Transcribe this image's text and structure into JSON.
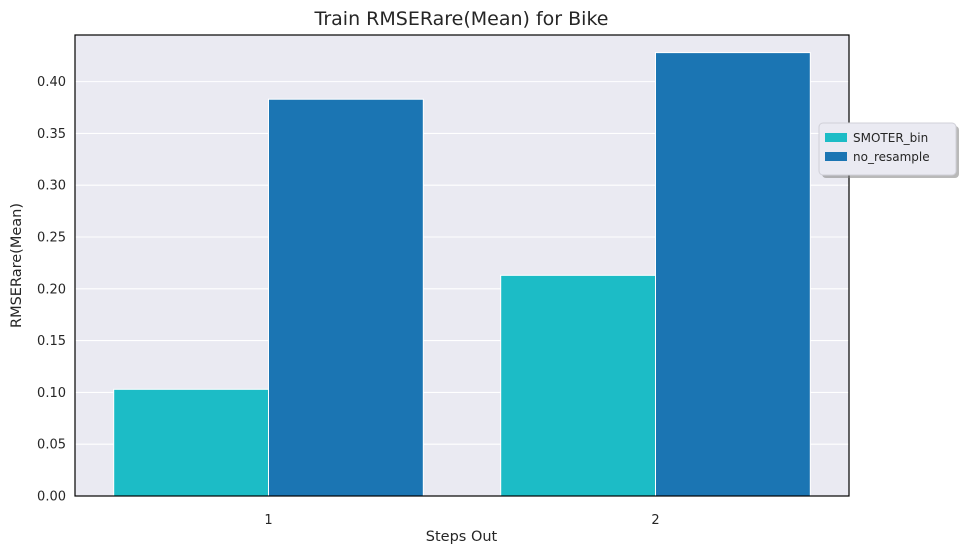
{
  "chart_data": {
    "type": "bar",
    "title": "Train RMSERare(Mean) for Bike",
    "xlabel": "Steps Out",
    "ylabel": "RMSERare(Mean)",
    "categories": [
      "1",
      "2"
    ],
    "series": [
      {
        "name": "SMOTER_bin",
        "values": [
          0.103,
          0.213
        ],
        "color": "#1cbcc6"
      },
      {
        "name": "no_resample",
        "values": [
          0.383,
          0.428
        ],
        "color": "#1b75b3"
      }
    ],
    "ylim": [
      0,
      0.445
    ],
    "yticks": [
      "0.00",
      "0.05",
      "0.10",
      "0.15",
      "0.20",
      "0.25",
      "0.30",
      "0.35",
      "0.40"
    ],
    "grid": true,
    "legend_position": "right, outside plot",
    "background_color": "#eaeaf2"
  }
}
